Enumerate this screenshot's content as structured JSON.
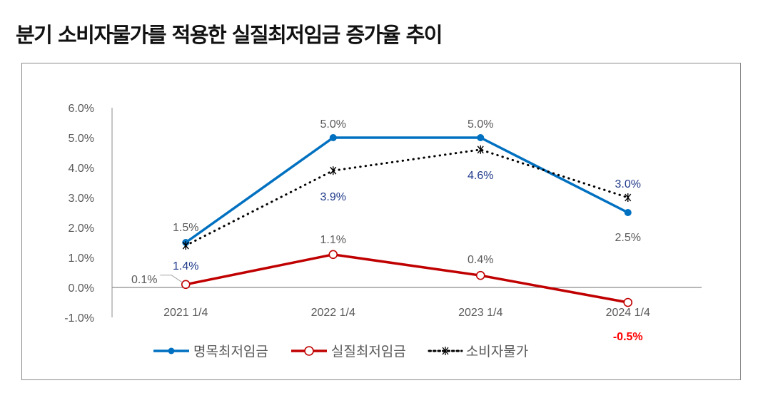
{
  "page_title": "분기 소비자물가를 적용한 실질최저임금 증가율 추이",
  "chart_data": {
    "type": "line",
    "title": "분기 소비자물가를 적용한 실질최저임금 증가율 추이",
    "xlabel": "",
    "ylabel": "",
    "categories": [
      "2021 1/4",
      "2022 1/4",
      "2023 1/4",
      "2024 1/4"
    ],
    "ylim": [
      -1.0,
      6.0
    ],
    "yticks": [
      -1.0,
      0.0,
      1.0,
      2.0,
      3.0,
      4.0,
      5.0,
      6.0
    ],
    "ytick_labels": [
      "-1.0%",
      "0.0%",
      "1.0%",
      "2.0%",
      "3.0%",
      "4.0%",
      "5.0%",
      "6.0%"
    ],
    "grid": false,
    "legend_position": "bottom",
    "series": [
      {
        "name": "명목최저임금",
        "values": [
          1.5,
          5.0,
          5.0,
          2.5
        ],
        "labels": [
          "1.5%",
          "5.0%",
          "5.0%",
          "2.5%"
        ],
        "color": "#0070C0",
        "label_color": "#595959",
        "style": "solid",
        "marker": "filled-circle"
      },
      {
        "name": "실질최저임금",
        "values": [
          0.1,
          1.1,
          0.4,
          -0.5
        ],
        "labels": [
          "0.1%",
          "1.1%",
          "0.4%",
          "-0.5%"
        ],
        "color": "#C00000",
        "label_color": "#595959",
        "highlight_label_color": "#FF0000",
        "style": "solid",
        "marker": "open-circle"
      },
      {
        "name": "소비자물가",
        "values": [
          1.4,
          3.9,
          4.6,
          3.0
        ],
        "labels": [
          "1.4%",
          "3.9%",
          "4.6%",
          "3.0%"
        ],
        "color": "#000000",
        "label_color": "#1F3A8A",
        "style": "dotted",
        "marker": "asterisk"
      }
    ]
  }
}
